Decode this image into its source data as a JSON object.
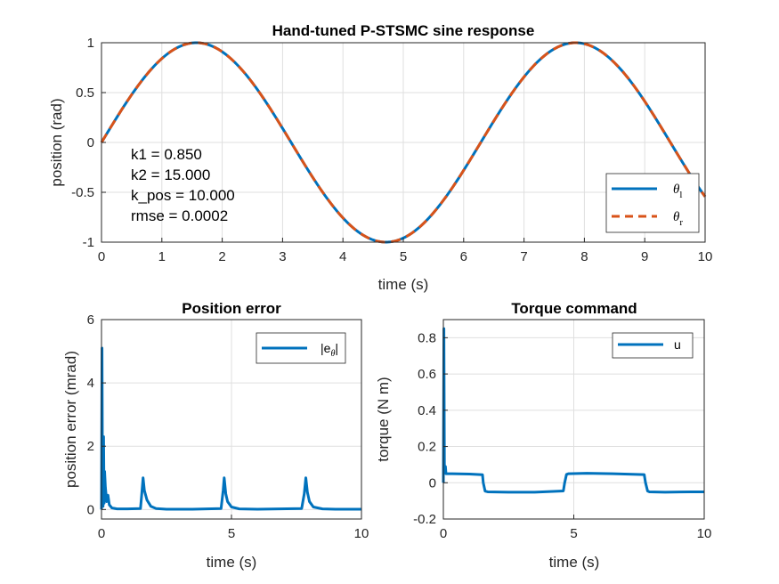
{
  "chart_data": [
    {
      "id": "top",
      "type": "line",
      "title": "Hand-tuned P-STSMC sine response",
      "xlabel": "time (s)",
      "ylabel": "position (rad)",
      "xlim": [
        0,
        10
      ],
      "ylim": [
        -1,
        1
      ],
      "xticks": [
        0,
        1,
        2,
        3,
        4,
        5,
        6,
        7,
        8,
        9,
        10
      ],
      "yticks": [
        -1,
        -0.5,
        0,
        0.5,
        1
      ],
      "ytick_labels": [
        "-1",
        "-0.5",
        "0",
        "0.5",
        "1"
      ],
      "grid": true,
      "legend_position": "bottom-right",
      "series": [
        {
          "name": "θ_l",
          "color": "#0072BD",
          "style": "solid",
          "function": "sin(t)",
          "x_range": [
            0,
            10
          ]
        },
        {
          "name": "θ_r",
          "color": "#D95319",
          "style": "dashed",
          "function": "sin(t)",
          "x_range": [
            0,
            10
          ]
        }
      ],
      "annotations": [
        "k1 = 0.850",
        "k2 = 15.000",
        "k_pos = 10.000",
        "rmse = 0.0002"
      ]
    },
    {
      "id": "error",
      "type": "line",
      "title": "Position error",
      "xlabel": "time (s)",
      "ylabel": "position error (mrad)",
      "xlim": [
        0,
        10
      ],
      "ylim": [
        -0.3,
        6
      ],
      "xticks": [
        0,
        5,
        10
      ],
      "yticks": [
        0,
        2,
        4,
        6
      ],
      "grid": true,
      "legend_position": "top-right",
      "series": [
        {
          "name": "|e_θ|",
          "color": "#0072BD",
          "x": [
            0,
            0.02,
            0.04,
            0.06,
            0.08,
            0.1,
            0.12,
            0.15,
            0.2,
            0.25,
            0.3,
            0.4,
            0.6,
            1.0,
            1.5,
            1.55,
            1.6,
            1.65,
            1.75,
            1.9,
            2.1,
            2.5,
            3.5,
            4.6,
            4.68,
            4.72,
            4.78,
            4.85,
            5.0,
            5.3,
            6.0,
            7.7,
            7.8,
            7.86,
            7.92,
            8.0,
            8.15,
            8.5,
            9.0,
            10.0
          ],
          "y": [
            0,
            5.1,
            0.6,
            0.1,
            2.3,
            0.2,
            1.2,
            0.7,
            0.25,
            0.45,
            0.15,
            0.05,
            0.02,
            0.02,
            0.03,
            0.5,
            1.0,
            0.6,
            0.3,
            0.1,
            0.03,
            0.01,
            0.01,
            0.03,
            0.6,
            1.0,
            0.5,
            0.25,
            0.08,
            0.02,
            0.01,
            0.03,
            0.5,
            1.0,
            0.55,
            0.25,
            0.08,
            0.02,
            0.01,
            0.01
          ]
        }
      ]
    },
    {
      "id": "torque",
      "type": "line",
      "title": "Torque command",
      "xlabel": "time (s)",
      "ylabel": "torque (N m)",
      "xlim": [
        0,
        10
      ],
      "ylim": [
        -0.2,
        0.9
      ],
      "xticks": [
        0,
        5,
        10
      ],
      "yticks": [
        -0.2,
        0,
        0.2,
        0.4,
        0.6,
        0.8
      ],
      "grid": true,
      "legend_position": "top-right",
      "series": [
        {
          "name": "u",
          "color": "#0072BD",
          "x": [
            0,
            0.02,
            0.04,
            0.06,
            0.08,
            0.1,
            0.15,
            0.3,
            1.0,
            1.5,
            1.53,
            1.6,
            1.7,
            2.5,
            3.5,
            4.6,
            4.65,
            4.72,
            4.8,
            5.5,
            6.5,
            7.7,
            7.75,
            7.83,
            7.9,
            8.5,
            9.5,
            10.0
          ],
          "y": [
            0,
            0.85,
            0.1,
            0.06,
            0.09,
            0.05,
            0.05,
            0.05,
            0.048,
            0.044,
            0.0,
            -0.046,
            -0.05,
            -0.052,
            -0.052,
            -0.045,
            0.0,
            0.046,
            0.05,
            0.052,
            0.05,
            0.045,
            0.0,
            -0.046,
            -0.05,
            -0.052,
            -0.05,
            -0.05
          ]
        }
      ]
    }
  ]
}
